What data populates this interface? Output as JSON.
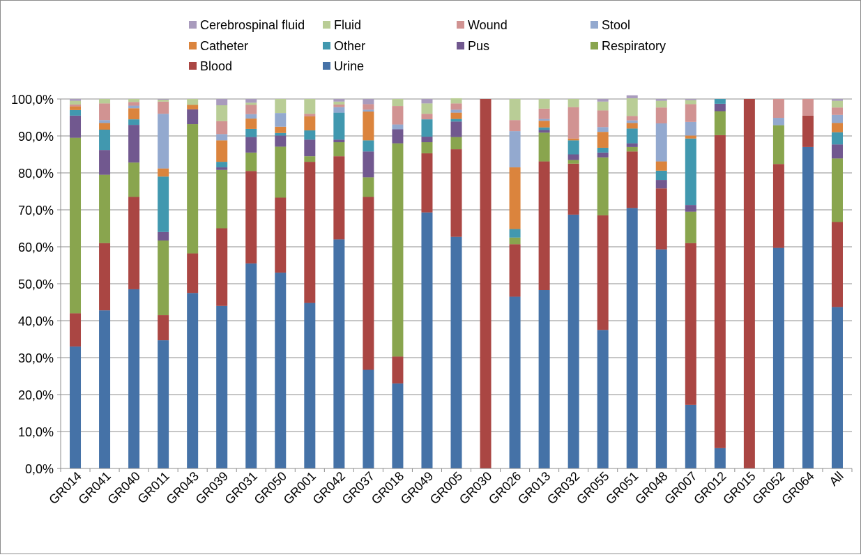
{
  "chart_data": {
    "type": "bar",
    "stacked": true,
    "percent_stacked": true,
    "categories": [
      "GR014",
      "GR041",
      "GR040",
      "GR011",
      "GR043",
      "GR039",
      "GR031",
      "GR050",
      "GR001",
      "GR042",
      "GR037",
      "GR018",
      "GR049",
      "GR005",
      "GR030",
      "GR026",
      "GR013",
      "GR032",
      "GR055",
      "GR051",
      "GR048",
      "GR007",
      "GR012",
      "GR015",
      "GR052",
      "GR064",
      "All"
    ],
    "y_ticks": [
      "0,0%",
      "10,0%",
      "20,0%",
      "30,0%",
      "40,0%",
      "50,0%",
      "60,0%",
      "70,0%",
      "80,0%",
      "90,0%",
      "100,0%"
    ],
    "ylim": [
      0,
      100
    ],
    "grid": true,
    "legend_position": "top",
    "series": [
      {
        "name": "Urine",
        "color": "#4572A7",
        "values": [
          33,
          42.8,
          48.5,
          34.7,
          47.5,
          44,
          55.5,
          53,
          44.8,
          62,
          26.7,
          23,
          69.3,
          62.7,
          0,
          46.5,
          48.3,
          68.7,
          37.5,
          70.5,
          59.3,
          17.2,
          5.5,
          0,
          59.7,
          87,
          43.7
        ]
      },
      {
        "name": "Blood",
        "color": "#AA4643",
        "values": [
          9,
          18.2,
          25,
          6.8,
          10.7,
          21,
          25,
          20.3,
          38.2,
          22.5,
          46.8,
          7.3,
          16,
          23.7,
          100,
          14.2,
          34.8,
          13.8,
          31,
          15.3,
          16.5,
          43.8,
          84.7,
          100,
          22.7,
          8.5,
          23
        ]
      },
      {
        "name": "Respiratory",
        "color": "#89A54E",
        "values": [
          47.5,
          18.5,
          9.3,
          20.2,
          35,
          15.8,
          5,
          13.8,
          1.5,
          3.8,
          5.3,
          57.7,
          3,
          3.3,
          0,
          1.8,
          7.8,
          1,
          15.7,
          1.2,
          0,
          8.5,
          6.5,
          0,
          10.5,
          0,
          17.2
        ]
      },
      {
        "name": "Pus",
        "color": "#71588F",
        "values": [
          6,
          6.7,
          10.2,
          2.3,
          4,
          0.7,
          4.2,
          3,
          4.5,
          0.7,
          7,
          3.8,
          1.5,
          4.2,
          0,
          0,
          0.7,
          1.5,
          1.3,
          1,
          2.3,
          1.8,
          2,
          0,
          0,
          0,
          3.8
        ]
      },
      {
        "name": "Other",
        "color": "#4198AF",
        "values": [
          1.5,
          5.5,
          1.5,
          15,
          0,
          1.5,
          2.2,
          0.7,
          2.5,
          7.3,
          3,
          0,
          4.7,
          0.7,
          0,
          2.3,
          0.7,
          3.8,
          1.3,
          4,
          2.5,
          18,
          1.3,
          0,
          0,
          0,
          3.3
        ]
      },
      {
        "name": "Catheter",
        "color": "#DB843D",
        "values": [
          1,
          1.8,
          3,
          2.2,
          1.2,
          5.8,
          2.8,
          1.7,
          3.8,
          0,
          7.8,
          0,
          0,
          1.7,
          0,
          16.7,
          1.8,
          0.5,
          4.3,
          1.5,
          2.5,
          0.8,
          0,
          0,
          0,
          0,
          2.5
        ]
      },
      {
        "name": "Stool",
        "color": "#93A9CF",
        "values": [
          0,
          0.8,
          0.7,
          14.8,
          0,
          1.7,
          1.2,
          3.7,
          0,
          1.5,
          0.5,
          1.3,
          0,
          0.8,
          0,
          9.8,
          0.5,
          0,
          1.3,
          0.7,
          10.3,
          3.7,
          0,
          0,
          2,
          0,
          2.2
        ]
      },
      {
        "name": "Wound",
        "color": "#D19392",
        "values": [
          0.5,
          4.5,
          1,
          3.3,
          0,
          3.5,
          2.5,
          0,
          0.7,
          0.7,
          1.5,
          5,
          1.5,
          1.7,
          0,
          3,
          2.8,
          8.5,
          4.5,
          1.2,
          4.3,
          4.8,
          0,
          0,
          5.1,
          4.5,
          2
        ]
      },
      {
        "name": "Fluid",
        "color": "#B9CD96",
        "values": [
          1,
          1.2,
          0.8,
          0.5,
          1.6,
          4.3,
          0.6,
          3.8,
          4,
          0.8,
          0,
          1.9,
          2.8,
          1.4,
          0,
          5.7,
          2.6,
          2.2,
          2.4,
          4.8,
          1.8,
          1.1,
          0,
          0,
          0,
          0,
          1.8
        ]
      },
      {
        "name": "Cerebrospinal fluid",
        "color": "#A99BBD",
        "values": [
          0.5,
          0,
          0,
          0.2,
          0,
          1.7,
          1,
          0,
          0,
          0.7,
          1.4,
          0,
          1.2,
          0,
          0,
          0,
          0,
          0,
          0.7,
          0.8,
          0.5,
          0.3,
          0,
          0,
          0,
          0,
          0.5
        ]
      }
    ],
    "legend_order": [
      "Cerebrospinal fluid",
      "Fluid",
      "Wound",
      "Stool",
      "Catheter",
      "Other",
      "Pus",
      "Respiratory",
      "Blood",
      "Urine"
    ]
  }
}
